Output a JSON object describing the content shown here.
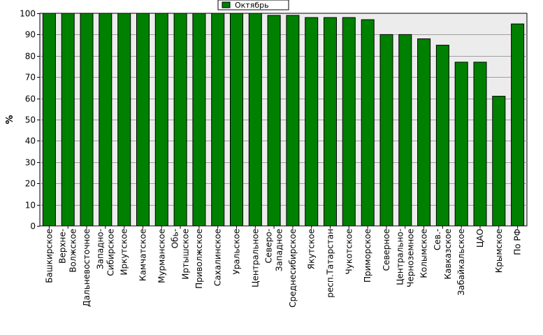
{
  "chart_data": {
    "type": "bar",
    "categories": [
      "Башкирское",
      "Верхне-Волжское",
      "Дальневосточное",
      "Западно-Сибирское",
      "Иркутское",
      "Камчатское",
      "Мурманское",
      "Обь-Иртышское",
      "Приволжское",
      "Сахалинское",
      "Уральское",
      "Центральное",
      "Северо-Западное",
      "Среднесибирское",
      "Якутское",
      "респ.Татарстан",
      "Чукотское",
      "Приморское",
      "Северное",
      "Центрально-Черноземное",
      "Колымское",
      "Сев.-Кавказское",
      "Забайкальское",
      "ЦАО",
      "Крымское",
      "По РФ"
    ],
    "category_lines": [
      [
        "Башкирское"
      ],
      [
        "Верхне-",
        "Волжское"
      ],
      [
        "Дальневосточное"
      ],
      [
        "Западно-",
        "Сибирское"
      ],
      [
        "Иркутское"
      ],
      [
        "Камчатское"
      ],
      [
        "Мурманское"
      ],
      [
        "Обь-",
        "Иртышское"
      ],
      [
        "Приволжское"
      ],
      [
        "Сахалинское"
      ],
      [
        "Уральское"
      ],
      [
        "Центральное"
      ],
      [
        "Северо-",
        "Западное"
      ],
      [
        "Среднесибирское"
      ],
      [
        "Якутское"
      ],
      [
        "респ.Татарстан"
      ],
      [
        "Чукотское"
      ],
      [
        "Приморское"
      ],
      [
        "Северное"
      ],
      [
        "Центрально-",
        "Черноземное"
      ],
      [
        "Колымское"
      ],
      [
        "Сев.-",
        "Кавказское"
      ],
      [
        "Забайкальское"
      ],
      [
        "ЦАО"
      ],
      [
        "Крымское"
      ],
      [
        "По РФ"
      ]
    ],
    "series": [
      {
        "name": "Октябрь",
        "color": "#008000",
        "values": [
          100,
          100,
          100,
          100,
          100,
          100,
          100,
          100,
          100,
          100,
          100,
          100,
          99,
          99,
          98,
          98,
          98,
          97,
          90,
          90,
          88,
          85,
          77,
          77,
          61,
          95
        ]
      }
    ],
    "ylabel": "%",
    "xlabel": "",
    "title": "",
    "ylim": [
      0,
      100
    ],
    "yticks": [
      0,
      10,
      20,
      30,
      40,
      50,
      60,
      70,
      80,
      90,
      100
    ],
    "grid": true,
    "legend": "top-center"
  }
}
